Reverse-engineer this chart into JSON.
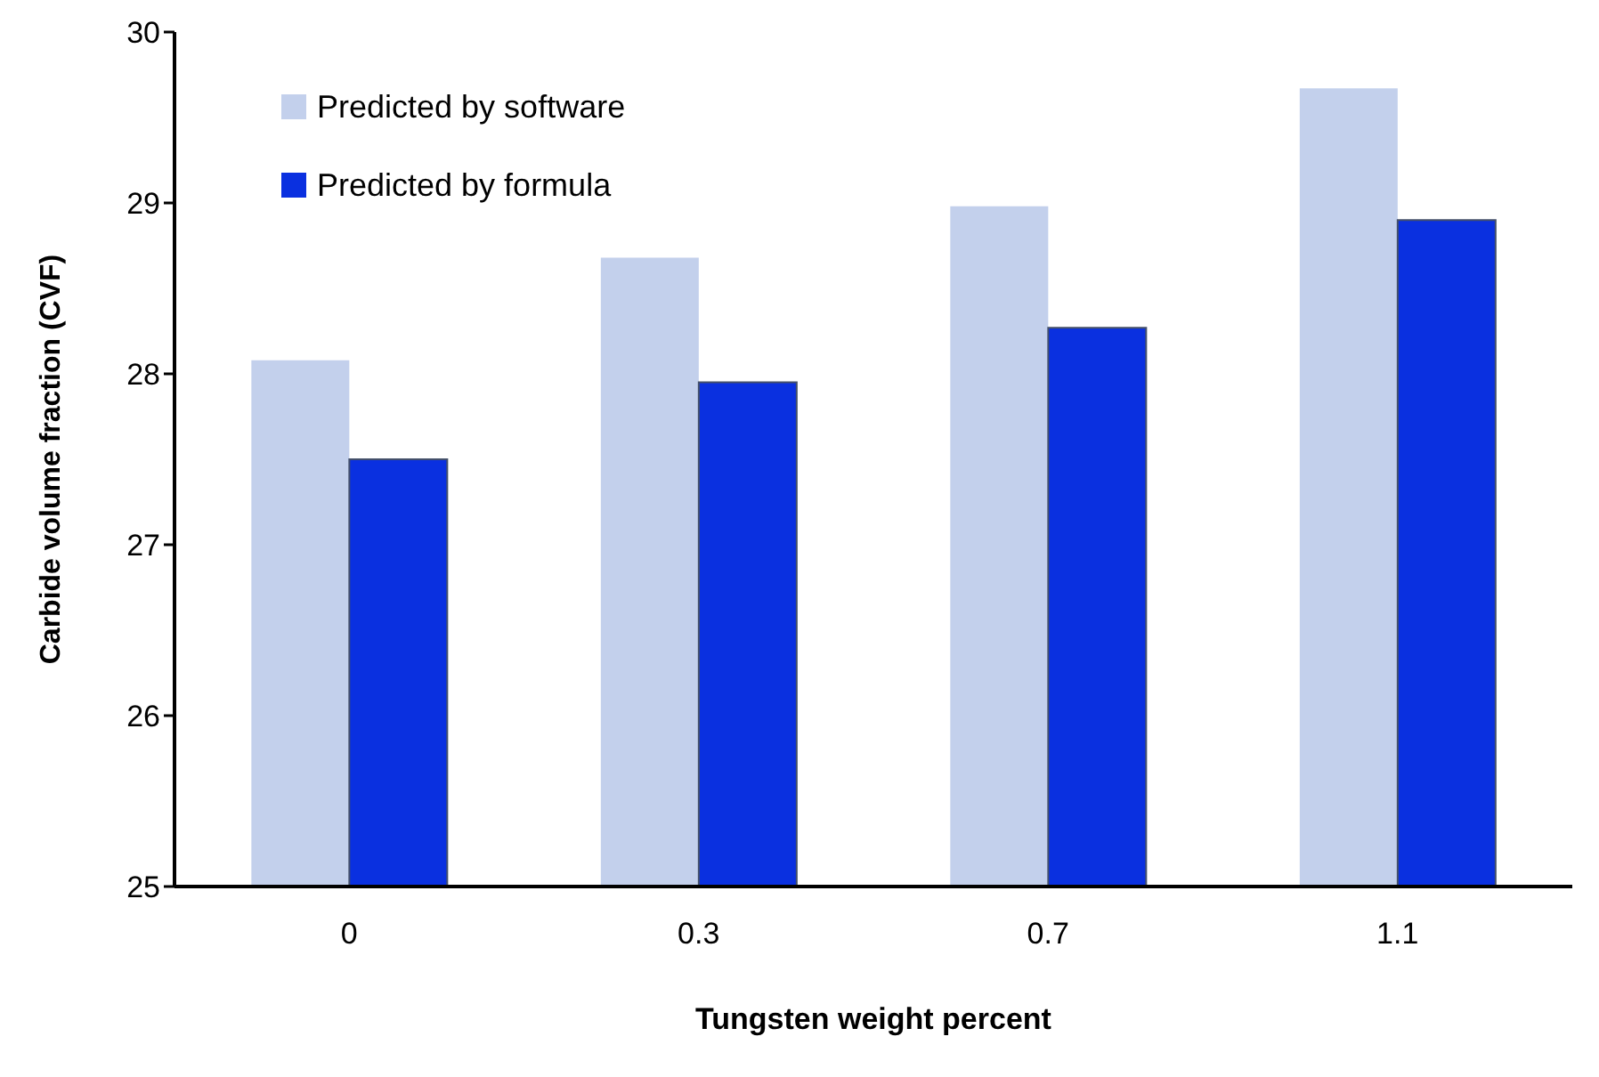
{
  "chart_data": {
    "type": "bar",
    "xlabel": "Tungsten weight percent",
    "ylabel": "Carbide volume fraction (CVF)",
    "categories": [
      "0",
      "0.3",
      "0.7",
      "1.1"
    ],
    "series": [
      {
        "name": "Predicted by software",
        "color": "#c3d0ec",
        "values": [
          28.08,
          28.68,
          28.98,
          29.67
        ]
      },
      {
        "name": "Predicted by formula",
        "color": "#0a30e0",
        "values": [
          27.5,
          27.95,
          28.27,
          28.9
        ]
      }
    ],
    "ylim": [
      25,
      30
    ],
    "yticks": [
      25,
      26,
      27,
      28,
      29,
      30
    ],
    "grid": false,
    "legend": "top left"
  }
}
